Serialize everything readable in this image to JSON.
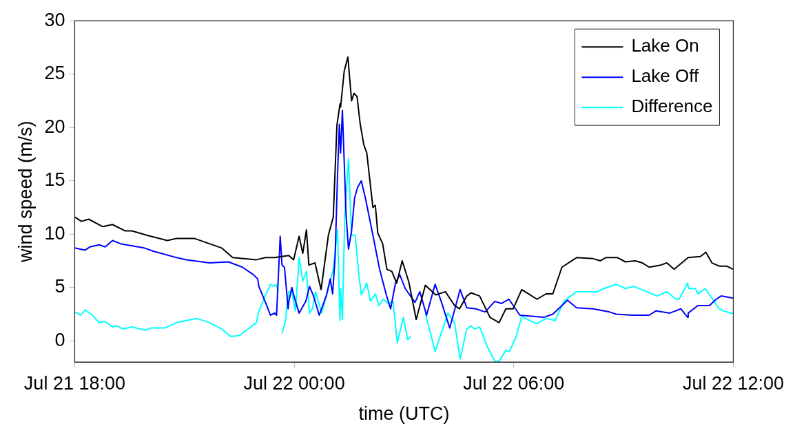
{
  "chart_data": {
    "type": "line",
    "xlabel": "time (UTC)",
    "ylabel": "wind speed (m/s)",
    "xlim": [
      "--07-21T18:00",
      "--07-22T12:00"
    ],
    "xticks": [
      {
        "value": "--07-21T18:00",
        "label": "Jul 21 18:00"
      },
      {
        "value": "--07-22T00:00",
        "label": "Jul 22 00:00"
      },
      {
        "value": "--07-22T06:00",
        "label": "Jul 22 06:00"
      },
      {
        "value": "--07-22T12:00",
        "label": "Jul 22 12:00"
      }
    ],
    "ylim": [
      -2,
      30
    ],
    "yticks": [
      0,
      5,
      10,
      15,
      20,
      25,
      30
    ],
    "grid": false,
    "legend": "top right",
    "marker": "none",
    "line_style": "solid",
    "series": [
      {
        "name": "Lake On",
        "color": "#000000",
        "x": [
          "--07-21T18:00",
          "--07-21T18:11",
          "--07-21T18:23",
          "--07-21T18:46",
          "--07-21T19:02",
          "--07-21T19:23",
          "--07-21T19:34",
          "--07-21T19:58",
          "--07-21T20:32",
          "--07-21T20:47",
          "--07-21T21:16",
          "--07-21T22:01",
          "--07-21T22:19",
          "--07-21T22:58",
          "--07-21T23:13",
          "--07-21T23:28",
          "--07-21T23:51",
          "--07-21T23:59",
          "--07-22T00:08",
          "--07-22T00:14",
          "--07-22T00:20",
          "--07-22T00:24",
          "--07-22T00:34",
          "--07-22T00:44",
          "--07-22T00:56",
          "--07-22T01:04",
          "--07-22T01:10",
          "--07-22T01:15",
          "--07-22T01:16",
          "--07-22T01:22",
          "--07-22T01:28",
          "--07-22T01:34",
          "--07-22T01:38",
          "--07-22T01:43",
          "--07-22T01:48",
          "--07-22T01:54",
          "--07-22T01:59",
          "--07-22T02:09",
          "--07-22T02:13",
          "--07-22T02:17",
          "--07-22T02:25",
          "--07-22T02:32",
          "--07-22T02:40",
          "--07-22T02:48",
          "--07-22T02:57",
          "--07-22T03:08",
          "--07-22T03:20",
          "--07-22T03:35",
          "--07-22T03:52",
          "--07-22T04:08",
          "--07-22T04:23",
          "--07-22T04:31",
          "--07-22T04:43",
          "--07-22T04:50",
          "--07-22T05:04",
          "--07-22T05:21",
          "--07-22T05:36",
          "--07-22T05:47",
          "--07-22T05:59",
          "--07-22T06:13",
          "--07-22T06:38",
          "--07-22T06:53",
          "--07-22T07:04",
          "--07-22T07:19",
          "--07-22T07:43",
          "--07-22T08:10",
          "--07-22T08:22",
          "--07-22T08:31",
          "--07-22T08:50",
          "--07-22T09:03",
          "--07-22T09:19",
          "--07-22T09:31",
          "--07-22T09:42",
          "--07-22T10:01",
          "--07-22T10:11",
          "--07-22T10:23",
          "--07-22T10:46",
          "--07-22T11:06",
          "--07-22T11:15",
          "--07-22T11:25",
          "--07-22T11:37",
          "--07-22T11:49",
          "--07-22T12:00"
        ],
        "values": [
          11.6,
          11.2,
          11.4,
          10.7,
          10.9,
          10.3,
          10.3,
          9.9,
          9.4,
          9.6,
          9.6,
          8.7,
          7.8,
          7.6,
          7.8,
          7.8,
          8.0,
          7.6,
          9.8,
          8.2,
          10.4,
          7.1,
          7.3,
          4.8,
          9.9,
          11.6,
          20.2,
          22.2,
          21.9,
          25.3,
          26.6,
          22.5,
          23.2,
          22.9,
          20.4,
          18.4,
          17.6,
          12.5,
          12.7,
          10.1,
          9.1,
          6.7,
          6.5,
          5.4,
          7.5,
          5.5,
          2.0,
          5.2,
          4.3,
          4.6,
          3.3,
          3.0,
          4.2,
          4.5,
          4.2,
          2.2,
          1.7,
          3.0,
          3.0,
          4.8,
          3.9,
          4.4,
          4.4,
          6.9,
          7.8,
          7.7,
          7.5,
          7.8,
          7.8,
          7.4,
          7.5,
          7.3,
          6.9,
          7.1,
          7.3,
          6.7,
          7.8,
          7.9,
          8.3,
          7.3,
          7.0,
          7.0,
          6.7
        ]
      },
      {
        "name": "Lake Off",
        "color": "#0000ff",
        "x": [
          "--07-21T18:00",
          "--07-21T18:17",
          "--07-21T18:25",
          "--07-21T18:40",
          "--07-21T18:50",
          "--07-21T19:02",
          "--07-21T19:15",
          "--07-21T19:34",
          "--07-21T19:54",
          "--07-21T20:09",
          "--07-21T20:47",
          "--07-21T21:03",
          "--07-21T21:41",
          "--07-21T22:12",
          "--07-21T22:35",
          "--07-21T22:53",
          "--07-21T23:00",
          "--07-21T23:02",
          "--07-21T23:15",
          "--07-21T23:21",
          "--07-21T23:28",
          "--07-21T23:31",
          "--07-21T23:37",
          "--07-21T23:40",
          "--07-21T23:44",
          "--07-21T23:50",
          "--07-21T23:51",
          "--07-21T23:56",
          "--07-22T00:01",
          "--07-22T00:08",
          "--07-22T00:19",
          "--07-22T00:25",
          "--07-22T00:31",
          "--07-22T00:41",
          "--07-22T00:53",
          "--07-22T00:59",
          "--07-22T01:03",
          "--07-22T01:07",
          "--07-22T01:11",
          "--07-22T01:14",
          "--07-22T01:16",
          "--07-22T01:19",
          "--07-22T01:25",
          "--07-22T01:29",
          "--07-22T01:34",
          "--07-22T01:39",
          "--07-22T01:44",
          "--07-22T01:50",
          "--07-22T01:57",
          "--07-22T02:09",
          "--07-22T02:20",
          "--07-22T02:31",
          "--07-22T02:38",
          "--07-22T02:46",
          "--07-22T02:53",
          "--07-22T03:02",
          "--07-22T03:18",
          "--07-22T03:26",
          "--07-22T03:37",
          "--07-22T03:51",
          "--07-22T04:01",
          "--07-22T04:15",
          "--07-22T04:32",
          "--07-22T04:43",
          "--07-22T04:58",
          "--07-22T05:13",
          "--07-22T05:29",
          "--07-22T05:40",
          "--07-22T05:52",
          "--07-22T06:10",
          "--07-22T06:30",
          "--07-22T06:49",
          "--07-22T07:04",
          "--07-22T07:19",
          "--07-22T07:28",
          "--07-22T07:43",
          "--07-22T08:10",
          "--07-22T08:37",
          "--07-22T08:48",
          "--07-22T09:14",
          "--07-22T09:42",
          "--07-22T09:53",
          "--07-22T10:16",
          "--07-22T10:34",
          "--07-22T10:45",
          "--07-22T10:46",
          "--07-22T11:02",
          "--07-22T11:21",
          "--07-22T11:32",
          "--07-22T11:40",
          "--07-22T12:00"
        ],
        "values": [
          8.7,
          8.5,
          8.8,
          9.0,
          8.8,
          9.4,
          9.1,
          8.9,
          8.7,
          8.4,
          7.8,
          7.6,
          7.3,
          7.4,
          6.9,
          6.2,
          5.8,
          5.1,
          3.3,
          2.4,
          2.6,
          2.4,
          9.8,
          7.1,
          6.9,
          3.0,
          3.6,
          5.0,
          3.9,
          2.6,
          3.7,
          5.1,
          4.3,
          2.4,
          4.3,
          5.8,
          4.4,
          7.8,
          15.5,
          20.3,
          17.6,
          21.6,
          11.8,
          8.6,
          10.3,
          13.4,
          14.4,
          15.0,
          13.3,
          9.9,
          6.7,
          4.3,
          3.0,
          5.4,
          6.2,
          4.9,
          3.6,
          4.6,
          2.4,
          5.3,
          3.7,
          1.2,
          4.8,
          3.1,
          3.0,
          2.7,
          3.7,
          3.5,
          3.9,
          2.4,
          2.3,
          2.2,
          2.5,
          3.3,
          3.8,
          3.1,
          3.0,
          2.7,
          2.5,
          2.4,
          2.4,
          2.8,
          2.6,
          3.0,
          2.2,
          2.6,
          3.3,
          3.3,
          3.9,
          4.2,
          4.0
        ]
      },
      {
        "name": "Difference",
        "color": "#00ffff",
        "x": [
          "--07-21T18:00",
          "--07-21T18:10",
          "--07-21T18:17",
          "--07-21T18:29",
          "--07-21T18:40",
          "--07-21T18:50",
          "--07-21T19:02",
          "--07-21T19:09",
          "--07-21T19:20",
          "--07-21T19:34",
          "--07-21T19:55",
          "--07-21T20:05",
          "--07-21T20:28",
          "--07-21T20:47",
          "--07-21T21:20",
          "--07-21T21:41",
          "--07-21T22:01",
          "--07-21T22:16",
          "--07-21T22:30",
          "--07-21T22:58",
          "--07-21T23:01",
          "--07-21T23:13",
          "--07-21T23:21",
          "--07-21T23:26",
          "--07-21T23:30",
          "--07-21T23:34",
          "--07-21T23:37",
          "--07-21T23:40",
          "--07-21T23:45",
          "--07-21T23:51",
          "--07-21T23:56",
          "--07-22T00:02",
          "--07-22T00:08",
          "--07-22T00:14",
          "--07-22T00:20",
          "--07-22T00:25",
          "--07-22T00:30",
          "--07-22T00:35",
          "--07-22T00:45",
          "--07-22T00:56",
          "--07-22T01:04",
          "--07-22T01:11",
          "--07-22T01:15",
          "--07-22T01:16",
          "--07-22T01:19",
          "--07-22T01:23",
          "--07-22T01:29",
          "--07-22T01:34",
          "--07-22T01:40",
          "--07-22T01:46",
          "--07-22T01:50",
          "--07-22T01:59",
          "--07-22T02:05",
          "--07-22T02:13",
          "--07-22T02:19",
          "--07-22T02:26",
          "--07-22T02:34",
          "--07-22T02:42",
          "--07-22T02:49",
          "--07-22T02:59",
          "--07-22T03:06",
          "--07-22T03:11",
          "--07-22T03:23",
          "--07-22T03:35",
          "--07-22T03:51",
          "--07-22T04:12",
          "--07-22T04:23",
          "--07-22T04:32",
          "--07-22T04:43",
          "--07-22T04:50",
          "--07-22T04:56",
          "--07-22T05:04",
          "--07-22T05:17",
          "--07-22T05:29",
          "--07-22T05:36",
          "--07-22T05:47",
          "--07-22T05:53",
          "--07-22T06:04",
          "--07-22T06:13",
          "--07-22T06:26",
          "--07-22T06:38",
          "--07-22T06:53",
          "--07-22T07:08",
          "--07-22T07:22",
          "--07-22T07:43",
          "--07-22T08:17",
          "--07-22T08:28",
          "--07-22T08:48",
          "--07-22T09:03",
          "--07-22T09:17",
          "--07-22T09:42",
          "--07-22T09:55",
          "--07-22T10:11",
          "--07-22T10:26",
          "--07-22T10:31",
          "--07-22T10:45",
          "--07-22T10:47",
          "--07-22T10:58",
          "--07-22T11:02",
          "--07-22T11:14",
          "--07-22T11:37",
          "--07-22T11:44",
          "--07-22T11:55",
          "--07-22T12:00"
        ],
        "values": [
          2.7,
          2.4,
          2.9,
          2.4,
          1.7,
          1.8,
          1.3,
          1.4,
          1.1,
          1.3,
          1.0,
          1.2,
          1.2,
          1.7,
          2.1,
          1.7,
          1.1,
          0.4,
          0.5,
          1.7,
          2.6,
          4.3,
          5.3,
          5.1,
          5.3,
          4.6,
          null,
          0.7,
          1.7,
          4.6,
          4.6,
          2.8,
          7.8,
          5.6,
          6.5,
          2.6,
          3.0,
          4.6,
          2.6,
          4.9,
          6.7,
          10.4,
          1.9,
          4.9,
          2.0,
          12.0,
          17.1,
          9.9,
          9.9,
          6.2,
          4.3,
          5.4,
          3.7,
          4.4,
          3.3,
          3.9,
          3.5,
          3.7,
          -0.2,
          2.2,
          0.1,
          0.4,
          null,
          2.6,
          -1.0,
          2.6,
          1.7,
          -1.7,
          1.1,
          1.4,
          1.1,
          1.3,
          -0.6,
          -1.9,
          -1.9,
          -0.9,
          -1.0,
          0.4,
          2.3,
          1.9,
          1.6,
          2.1,
          1.9,
          3.7,
          4.6,
          4.6,
          4.9,
          5.3,
          4.9,
          5.1,
          4.5,
          4.2,
          4.6,
          3.9,
          3.9,
          5.4,
          4.9,
          4.9,
          4.4,
          4.9,
          3.0,
          2.8,
          2.6,
          2.6
        ]
      }
    ]
  }
}
